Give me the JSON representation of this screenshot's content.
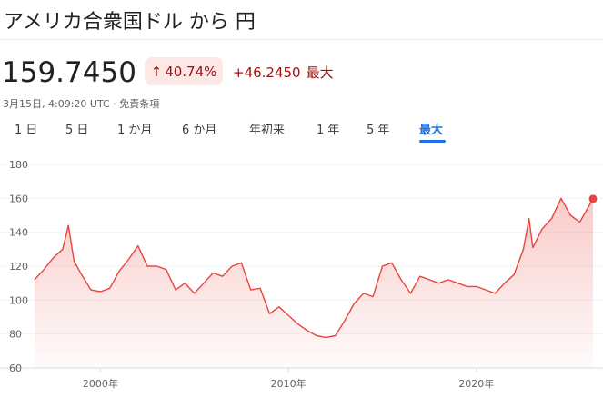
{
  "header": {
    "title": "アメリカ合衆国ドル から 円"
  },
  "quote": {
    "price": "159.7450",
    "percent_change": "40.74%",
    "change_arrow_icon": "arrow-up-icon",
    "absolute_change": "+46.2450",
    "period_label": "最大",
    "timestamp": "3月15日, 4:09:20 UTC",
    "separator": " · ",
    "disclaimer": "免責条項",
    "negative_color": "#a50e0e"
  },
  "tabs": [
    {
      "label": "1 日",
      "active": false
    },
    {
      "label": "5 日",
      "active": false
    },
    {
      "label": "1 か月",
      "active": false
    },
    {
      "label": "6 か月",
      "active": false
    },
    {
      "label": "年初来",
      "active": false
    },
    {
      "label": "1 年",
      "active": false
    },
    {
      "label": "5 年",
      "active": false
    },
    {
      "label": "最大",
      "active": true
    }
  ],
  "colors": {
    "accent": "#1a73e8",
    "line": "#e8453c"
  },
  "chart_data": {
    "type": "area",
    "title": "",
    "xlabel": "",
    "ylabel": "",
    "ylim": [
      60,
      180
    ],
    "yticks": [
      "180",
      "160",
      "140",
      "120",
      "100",
      "80",
      "60"
    ],
    "xticks": [
      "2000年",
      "2010年",
      "2020年"
    ],
    "grid": true,
    "series": [
      {
        "x": [
          1996.5,
          1997.0,
          1997.5,
          1998.0,
          1998.3,
          1998.6,
          1999.0,
          1999.5,
          2000.0,
          2000.5,
          2001.0,
          2001.5,
          2002.0,
          2002.5,
          2003.0,
          2003.5,
          2004.0,
          2004.5,
          2005.0,
          2005.5,
          2006.0,
          2006.5,
          2007.0,
          2007.5,
          2008.0,
          2008.5,
          2009.0,
          2009.5,
          2010.0,
          2010.5,
          2011.0,
          2011.5,
          2012.0,
          2012.5,
          2013.0,
          2013.5,
          2014.0,
          2014.5,
          2015.0,
          2015.5,
          2016.0,
          2016.5,
          2017.0,
          2017.5,
          2018.0,
          2018.5,
          2019.0,
          2019.5,
          2020.0,
          2020.5,
          2021.0,
          2021.5,
          2022.0,
          2022.5,
          2022.8,
          2023.0,
          2023.5,
          2024.0,
          2024.5,
          2025.0,
          2025.5,
          2026.2
        ],
        "y": [
          112,
          118,
          125,
          130,
          144,
          123,
          115,
          106,
          105,
          107,
          117,
          124,
          132,
          120,
          120,
          118,
          106,
          110,
          104,
          110,
          116,
          114,
          120,
          122,
          106,
          107,
          92,
          96,
          91,
          86,
          82,
          79,
          78,
          79,
          88,
          98,
          104,
          102,
          120,
          122,
          112,
          104,
          114,
          112,
          110,
          112,
          110,
          108,
          108,
          106,
          104,
          110,
          115,
          130,
          148,
          131,
          142,
          148,
          160,
          150,
          146,
          159.7
        ]
      }
    ],
    "end_marker": true
  }
}
